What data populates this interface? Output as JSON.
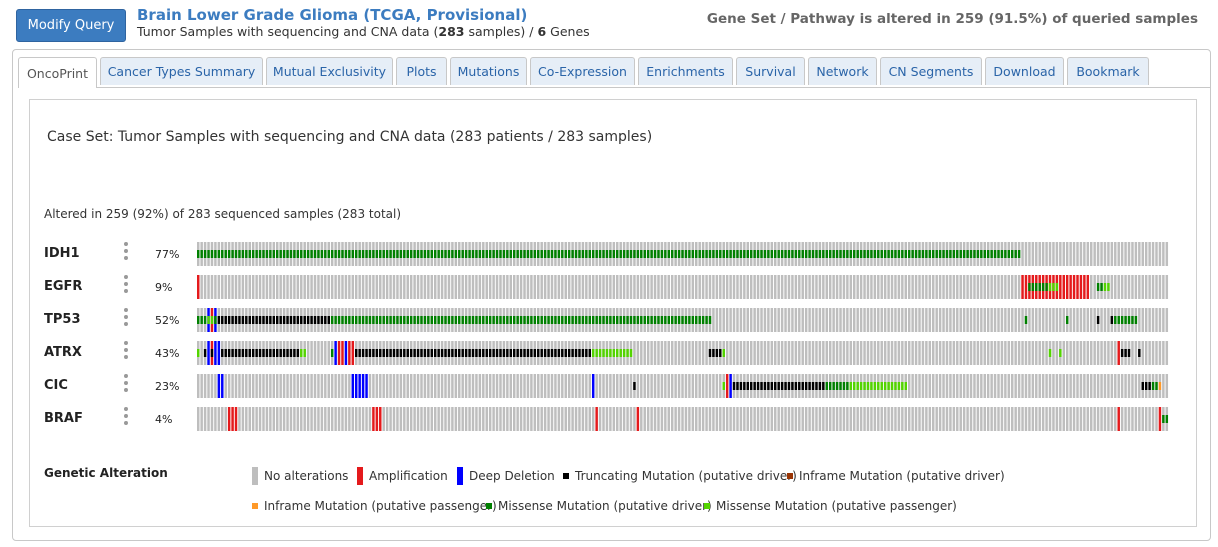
{
  "header": {
    "modify_query_label": "Modify Query",
    "study_title": "Brain Lower Grade Glioma (TCGA, Provisional)",
    "sub_prefix": "Tumor Samples with sequencing and CNA data (",
    "sub_samples": "283",
    "sub_middle": " samples) / ",
    "sub_genes": "6",
    "sub_suffix": " Genes",
    "altered_summary": "Gene Set / Pathway is altered in 259 (91.5%) of queried samples"
  },
  "tabs": [
    {
      "label": "OncoPrint",
      "active": true
    },
    {
      "label": "Cancer Types Summary",
      "active": false
    },
    {
      "label": "Mutual Exclusivity",
      "active": false
    },
    {
      "label": "Plots",
      "active": false
    },
    {
      "label": "Mutations",
      "active": false
    },
    {
      "label": "Co-Expression",
      "active": false
    },
    {
      "label": "Enrichments",
      "active": false
    },
    {
      "label": "Survival",
      "active": false
    },
    {
      "label": "Network",
      "active": false
    },
    {
      "label": "CN Segments",
      "active": false
    },
    {
      "label": "Download",
      "active": false
    },
    {
      "label": "Bookmark",
      "active": false
    }
  ],
  "oncoprint": {
    "case_set": "Case Set: Tumor Samples with sequencing and CNA data (283 patients / 283 samples)",
    "altered_line": "Altered in 259 (92%) of 283 sequenced samples (283 total)",
    "sample_count": 283,
    "colors": {
      "none": "#bebebe",
      "amp": "#e41a1c",
      "del": "#0000ff",
      "trunc": "#000000",
      "inframe_drv": "#993404",
      "inframe_pass": "#fe9929",
      "missense_drv": "#008000",
      "missense_pass": "#53d400"
    },
    "genes": [
      {
        "name": "IDH1",
        "pct": "77%",
        "alterations": [
          {
            "from": 0,
            "to": 240,
            "mut": "missense_drv"
          }
        ]
      },
      {
        "name": "EGFR",
        "pct": "9%",
        "alterations": [
          {
            "from": 0,
            "to": 1,
            "cna": "amp"
          },
          {
            "from": 240,
            "to": 260,
            "cna": "amp"
          },
          {
            "from": 242,
            "to": 248,
            "mut": "missense_drv"
          },
          {
            "from": 248,
            "to": 251,
            "mut": "missense_pass"
          },
          {
            "from": 262,
            "to": 265,
            "mut": "missense_drv"
          },
          {
            "from": 264,
            "to": 266,
            "mut": "missense_pass"
          }
        ]
      },
      {
        "name": "TP53",
        "pct": "52%",
        "alterations": [
          {
            "from": 0,
            "to": 3,
            "mut": "missense_drv"
          },
          {
            "from": 3,
            "to": 4,
            "cna": "del"
          },
          {
            "from": 3,
            "to": 4,
            "mut": "missense_drv"
          },
          {
            "from": 4,
            "to": 5,
            "cna": "amp"
          },
          {
            "from": 3,
            "to": 5,
            "mut": "missense_pass"
          },
          {
            "from": 5,
            "to": 6,
            "cna": "del"
          },
          {
            "from": 5,
            "to": 6,
            "mut": "missense_drv"
          },
          {
            "from": 6,
            "to": 39,
            "mut": "trunc"
          },
          {
            "from": 39,
            "to": 150,
            "mut": "missense_drv"
          },
          {
            "from": 241,
            "to": 242,
            "mut": "missense_drv"
          },
          {
            "from": 253,
            "to": 254,
            "mut": "missense_drv"
          },
          {
            "from": 262,
            "to": 263,
            "mut": "trunc"
          },
          {
            "from": 266,
            "to": 267,
            "mut": "trunc"
          },
          {
            "from": 267,
            "to": 274,
            "mut": "missense_drv"
          }
        ]
      },
      {
        "name": "ATRX",
        "pct": "43%",
        "alterations": [
          {
            "from": 0,
            "to": 1,
            "mut": "missense_pass"
          },
          {
            "from": 2,
            "to": 3,
            "mut": "trunc"
          },
          {
            "from": 3,
            "to": 4,
            "cna": "del"
          },
          {
            "from": 4,
            "to": 5,
            "cna": "amp"
          },
          {
            "from": 4,
            "to": 5,
            "mut": "trunc"
          },
          {
            "from": 5,
            "to": 7,
            "cna": "del"
          },
          {
            "from": 7,
            "to": 30,
            "mut": "trunc"
          },
          {
            "from": 30,
            "to": 32,
            "mut": "missense_pass"
          },
          {
            "from": 39,
            "to": 40,
            "mut": "missense_drv"
          },
          {
            "from": 40,
            "to": 41,
            "cna": "del"
          },
          {
            "from": 41,
            "to": 43,
            "cna": "amp"
          },
          {
            "from": 43,
            "to": 44,
            "cna": "del"
          },
          {
            "from": 44,
            "to": 46,
            "cna": "amp"
          },
          {
            "from": 46,
            "to": 115,
            "mut": "trunc"
          },
          {
            "from": 115,
            "to": 127,
            "mut": "missense_pass"
          },
          {
            "from": 149,
            "to": 153,
            "mut": "trunc"
          },
          {
            "from": 153,
            "to": 154,
            "mut": "missense_pass"
          },
          {
            "from": 248,
            "to": 249,
            "mut": "missense_pass"
          },
          {
            "from": 251,
            "to": 252,
            "mut": "missense_pass"
          },
          {
            "from": 268,
            "to": 269,
            "cna": "amp"
          },
          {
            "from": 269,
            "to": 272,
            "mut": "trunc"
          },
          {
            "from": 274,
            "to": 275,
            "mut": "trunc"
          }
        ]
      },
      {
        "name": "CIC",
        "pct": "23%",
        "alterations": [
          {
            "from": 6,
            "to": 8,
            "cna": "del"
          },
          {
            "from": 45,
            "to": 50,
            "cna": "del"
          },
          {
            "from": 115,
            "to": 116,
            "cna": "del"
          },
          {
            "from": 127,
            "to": 128,
            "mut": "trunc"
          },
          {
            "from": 153,
            "to": 154,
            "mut": "missense_pass"
          },
          {
            "from": 154,
            "to": 155,
            "cna": "amp"
          },
          {
            "from": 155,
            "to": 156,
            "cna": "del"
          },
          {
            "from": 156,
            "to": 183,
            "mut": "trunc"
          },
          {
            "from": 183,
            "to": 190,
            "mut": "missense_drv"
          },
          {
            "from": 190,
            "to": 207,
            "mut": "missense_pass"
          },
          {
            "from": 275,
            "to": 278,
            "mut": "trunc"
          },
          {
            "from": 278,
            "to": 280,
            "mut": "missense_drv"
          },
          {
            "from": 280,
            "to": 281,
            "mut": "inframe_pass"
          }
        ]
      },
      {
        "name": "BRAF",
        "pct": "4%",
        "alterations": [
          {
            "from": 9,
            "to": 12,
            "cna": "amp"
          },
          {
            "from": 51,
            "to": 54,
            "cna": "amp"
          },
          {
            "from": 116,
            "to": 117,
            "cna": "amp"
          },
          {
            "from": 128,
            "to": 129,
            "cna": "amp"
          },
          {
            "from": 268,
            "to": 269,
            "cna": "amp"
          },
          {
            "from": 280,
            "to": 281,
            "cna": "amp"
          },
          {
            "from": 281,
            "to": 283,
            "mut": "missense_drv"
          }
        ]
      }
    ]
  },
  "legend": {
    "title": "Genetic Alteration",
    "items": [
      {
        "label": "No alterations",
        "key": "none"
      },
      {
        "label": "Amplification",
        "key": "amp"
      },
      {
        "label": "Deep Deletion",
        "key": "del"
      },
      {
        "label": "Truncating Mutation (putative driver)",
        "key": "trunc"
      },
      {
        "label": "Inframe Mutation (putative driver)",
        "key": "inframe_drv"
      },
      {
        "label": "Inframe Mutation (putative passenger)",
        "key": "inframe_pass"
      },
      {
        "label": "Missense Mutation (putative driver)",
        "key": "missense_drv"
      },
      {
        "label": "Missense Mutation (putative passenger)",
        "key": "missense_pass"
      }
    ]
  }
}
